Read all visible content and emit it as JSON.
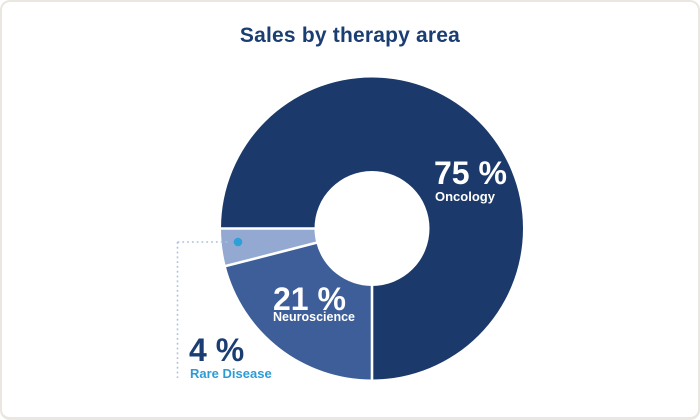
{
  "chart_data": {
    "type": "pie",
    "subtype": "donut",
    "title": "Sales by therapy area",
    "unit": "%",
    "start_angle_deg": 270,
    "direction": "clockwise",
    "legend_position": "on-slices",
    "segments": [
      {
        "label": "Oncology",
        "value": 75,
        "display": "75 %",
        "color": "#1b3a6b",
        "text_color": "#ffffff"
      },
      {
        "label": "Neuroscience",
        "value": 21,
        "display": "21 %",
        "color": "#3d5e99",
        "text_color": "#ffffff"
      },
      {
        "label": "Rare Disease",
        "value": 4,
        "display": "4 %",
        "color": "#93a9d1",
        "text_color": "#1b3e72"
      }
    ],
    "callout": {
      "target": "Rare Disease",
      "dot_color": "#2da0da",
      "line_color": "#a9c2dd",
      "label_color": "#2f9bd6"
    },
    "colors": {
      "title": "#1b3e72",
      "background": "#ffffff",
      "card_border": "#eae7e1",
      "slice_divider": "#ffffff"
    }
  }
}
